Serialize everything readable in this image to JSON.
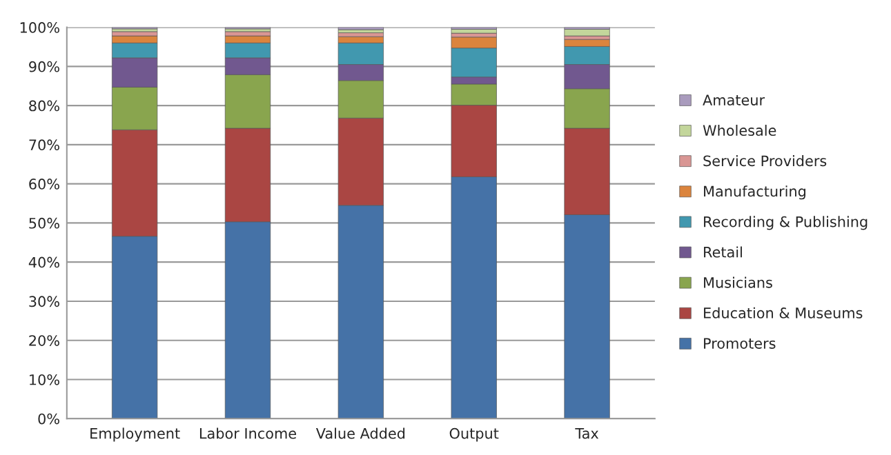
{
  "chart_data": {
    "type": "bar",
    "stacked": true,
    "categories": [
      "Employment",
      "Labor Income",
      "Value Added",
      "Output",
      "Tax"
    ],
    "series": [
      {
        "name": "Promoters",
        "color": "#4572a7",
        "values": [
          46.6,
          50.3,
          54.5,
          61.8,
          52.1
        ]
      },
      {
        "name": "Education & Museums",
        "color": "#aa4643",
        "values": [
          27.2,
          23.9,
          22.3,
          18.3,
          22.1
        ]
      },
      {
        "name": "Musicians",
        "color": "#89a54e",
        "values": [
          10.9,
          13.7,
          9.6,
          5.4,
          10.1
        ]
      },
      {
        "name": "Retail",
        "color": "#71588f",
        "values": [
          7.5,
          4.3,
          4.1,
          1.8,
          6.2
        ]
      },
      {
        "name": "Recording & Publishing",
        "color": "#4198af",
        "values": [
          3.8,
          3.8,
          5.5,
          7.4,
          4.6
        ]
      },
      {
        "name": "Manufacturing",
        "color": "#db843d",
        "values": [
          1.8,
          1.8,
          1.6,
          2.8,
          1.8
        ]
      },
      {
        "name": "Service Providers",
        "color": "#d99694",
        "values": [
          1.1,
          1.1,
          1.0,
          1.0,
          0.9
        ]
      },
      {
        "name": "Wholesale",
        "color": "#c3d69b",
        "values": [
          0.7,
          0.7,
          0.8,
          1.0,
          1.7
        ]
      },
      {
        "name": "Amateur",
        "color": "#a99bbd",
        "values": [
          0.4,
          0.4,
          0.6,
          0.5,
          0.5
        ]
      }
    ],
    "ylim": [
      0,
      100
    ],
    "yticks": [
      {
        "value": 0,
        "label": "0%"
      },
      {
        "value": 10,
        "label": "10%"
      },
      {
        "value": 20,
        "label": "20%"
      },
      {
        "value": 30,
        "label": "30%"
      },
      {
        "value": 40,
        "label": "40%"
      },
      {
        "value": 50,
        "label": "50%"
      },
      {
        "value": 60,
        "label": "60%"
      },
      {
        "value": 70,
        "label": "70%"
      },
      {
        "value": 80,
        "label": "80%"
      },
      {
        "value": 90,
        "label": "90%"
      },
      {
        "value": 100,
        "label": "100%"
      }
    ],
    "grid": "y",
    "legend": "right"
  }
}
